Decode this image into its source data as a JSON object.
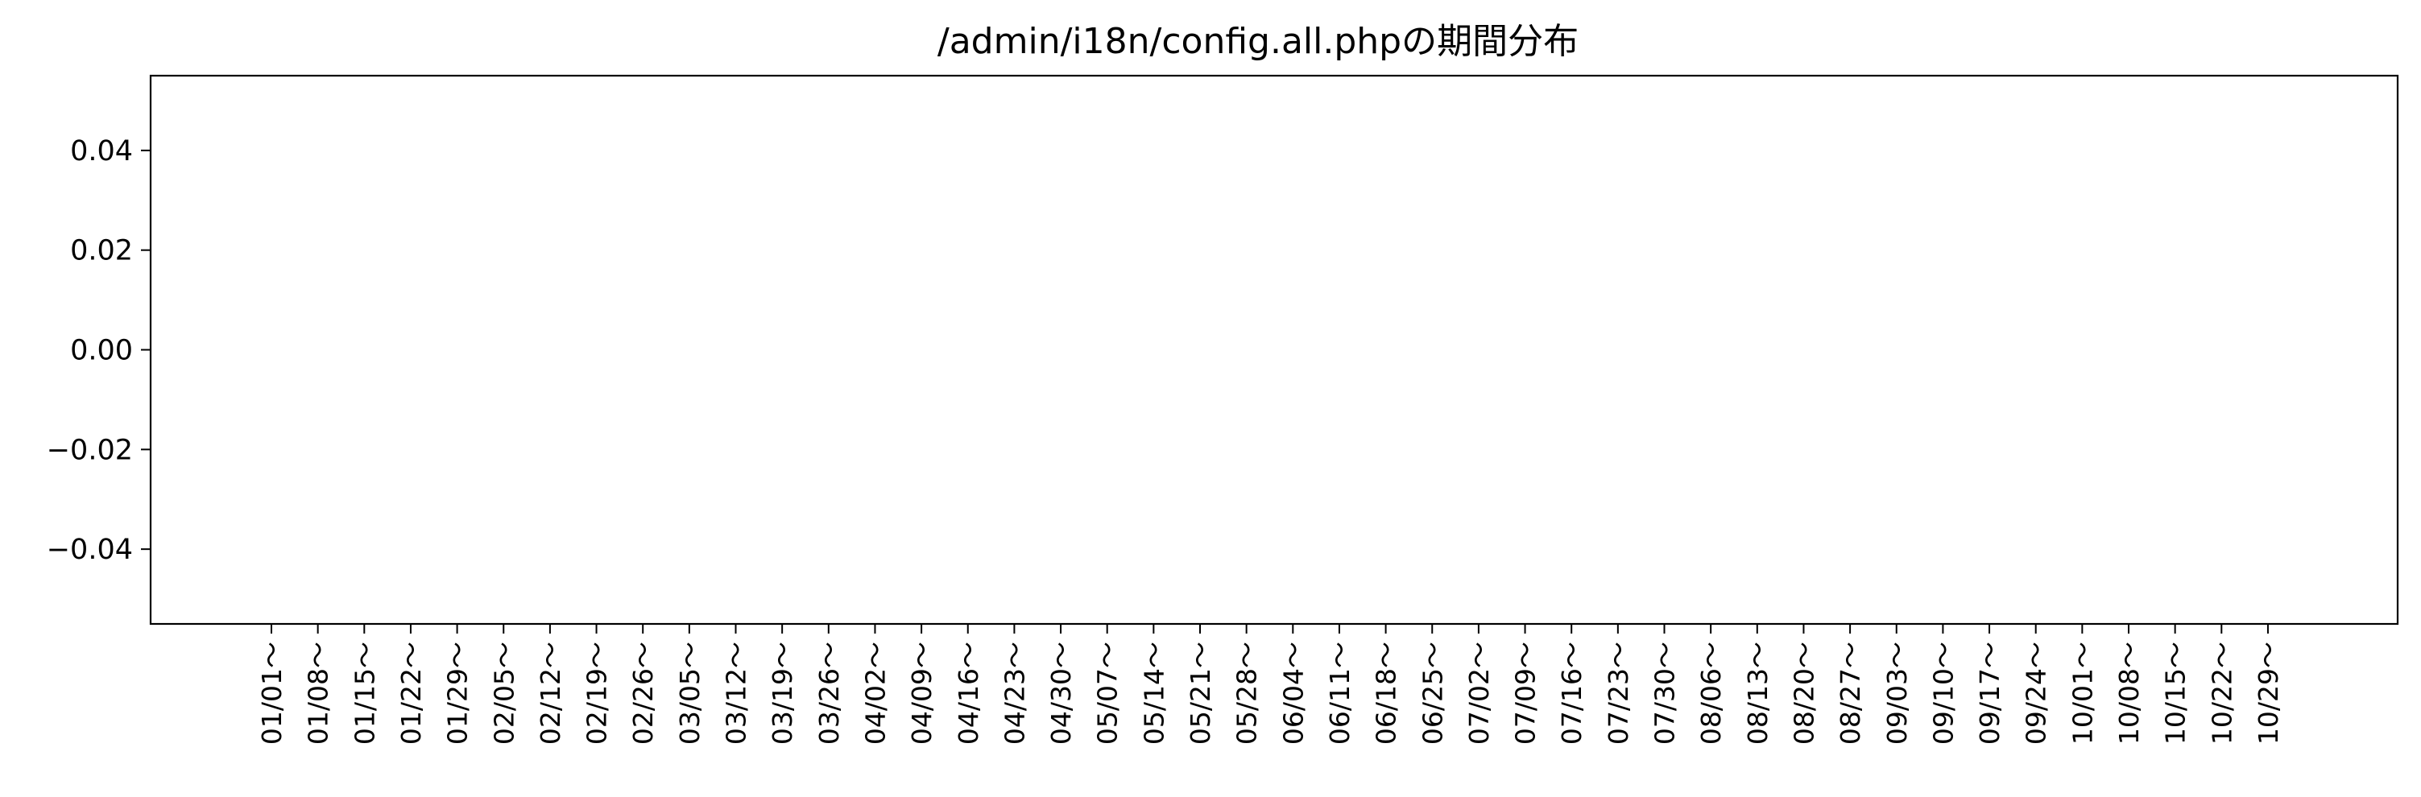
{
  "chart_data": {
    "type": "bar",
    "title": "/admin/i18n/config.all.phpの期間分布",
    "xlabel": "",
    "ylabel": "",
    "categories": [
      "01/01～",
      "01/08～",
      "01/15～",
      "01/22～",
      "01/29～",
      "02/05～",
      "02/12～",
      "02/19～",
      "02/26～",
      "03/05～",
      "03/12～",
      "03/19～",
      "03/26～",
      "04/02～",
      "04/09～",
      "04/16～",
      "04/23～",
      "04/30～",
      "05/07～",
      "05/14～",
      "05/21～",
      "05/28～",
      "06/04～",
      "06/11～",
      "06/18～",
      "06/25～",
      "07/02～",
      "07/09～",
      "07/16～",
      "07/23～",
      "07/30～",
      "08/06～",
      "08/13～",
      "08/20～",
      "08/27～",
      "09/03～",
      "09/10～",
      "09/17～",
      "09/24～",
      "10/01～",
      "10/08～",
      "10/15～",
      "10/22～",
      "10/29～"
    ],
    "values": [
      0,
      0,
      0,
      0,
      0,
      0,
      0,
      0,
      0,
      0,
      0,
      0,
      0,
      0,
      0,
      0,
      0,
      0,
      0,
      0,
      0,
      0,
      0,
      0,
      0,
      0,
      0,
      0,
      0,
      0,
      0,
      0,
      0,
      0,
      0,
      0,
      0,
      0,
      0,
      0,
      0,
      0,
      0,
      0
    ],
    "ylim": [
      -0.055,
      0.055
    ],
    "yticks": [
      0.04,
      0.02,
      0.0,
      -0.02,
      -0.04
    ],
    "ytick_labels": [
      "0.04",
      "0.02",
      "0.00",
      "−0.02",
      "−0.04"
    ],
    "grid": false,
    "legend": "none"
  }
}
